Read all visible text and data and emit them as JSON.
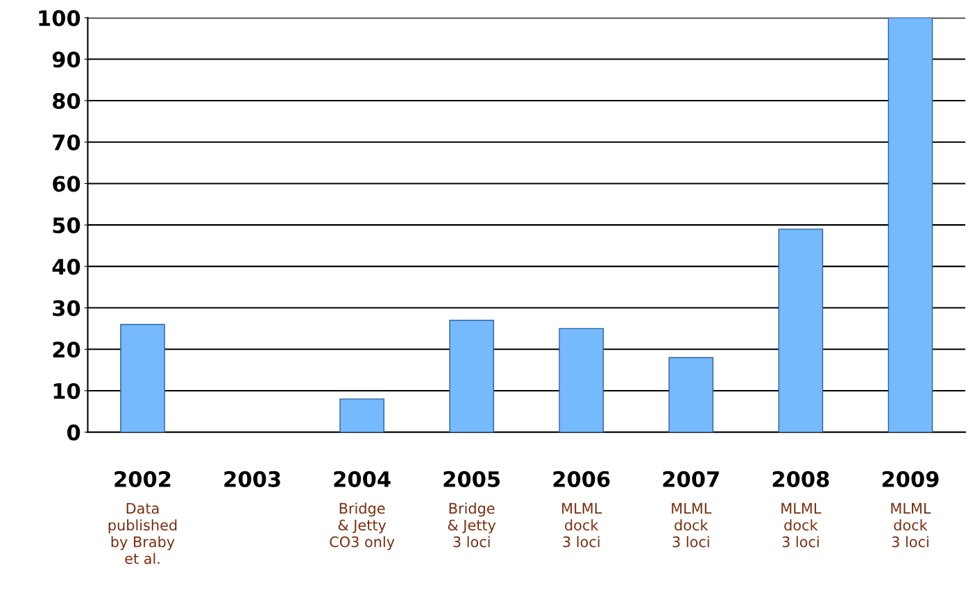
{
  "chart_data": {
    "type": "bar",
    "categories": [
      "2002",
      "2003",
      "2004",
      "2005",
      "2006",
      "2007",
      "2008",
      "2009"
    ],
    "values": [
      26,
      0,
      8,
      27,
      25,
      18,
      49,
      100
    ],
    "color": "#75b9ff",
    "ylim": [
      0,
      100
    ],
    "yticks": [
      0,
      10,
      20,
      30,
      40,
      50,
      60,
      70,
      80,
      90,
      100
    ],
    "grid": "y",
    "annotations": [
      "Data\npublished\nby Braby\net al.",
      "Bridge\n& Jetty\nCO3 only",
      "Bridge\n& Jetty\n3 loci",
      "MLML\ndock\n3 loci",
      "MLML\ndock\n3 loci",
      "MLML\ndock\n3 loci",
      "MLML\ndock\n3 loci"
    ]
  }
}
